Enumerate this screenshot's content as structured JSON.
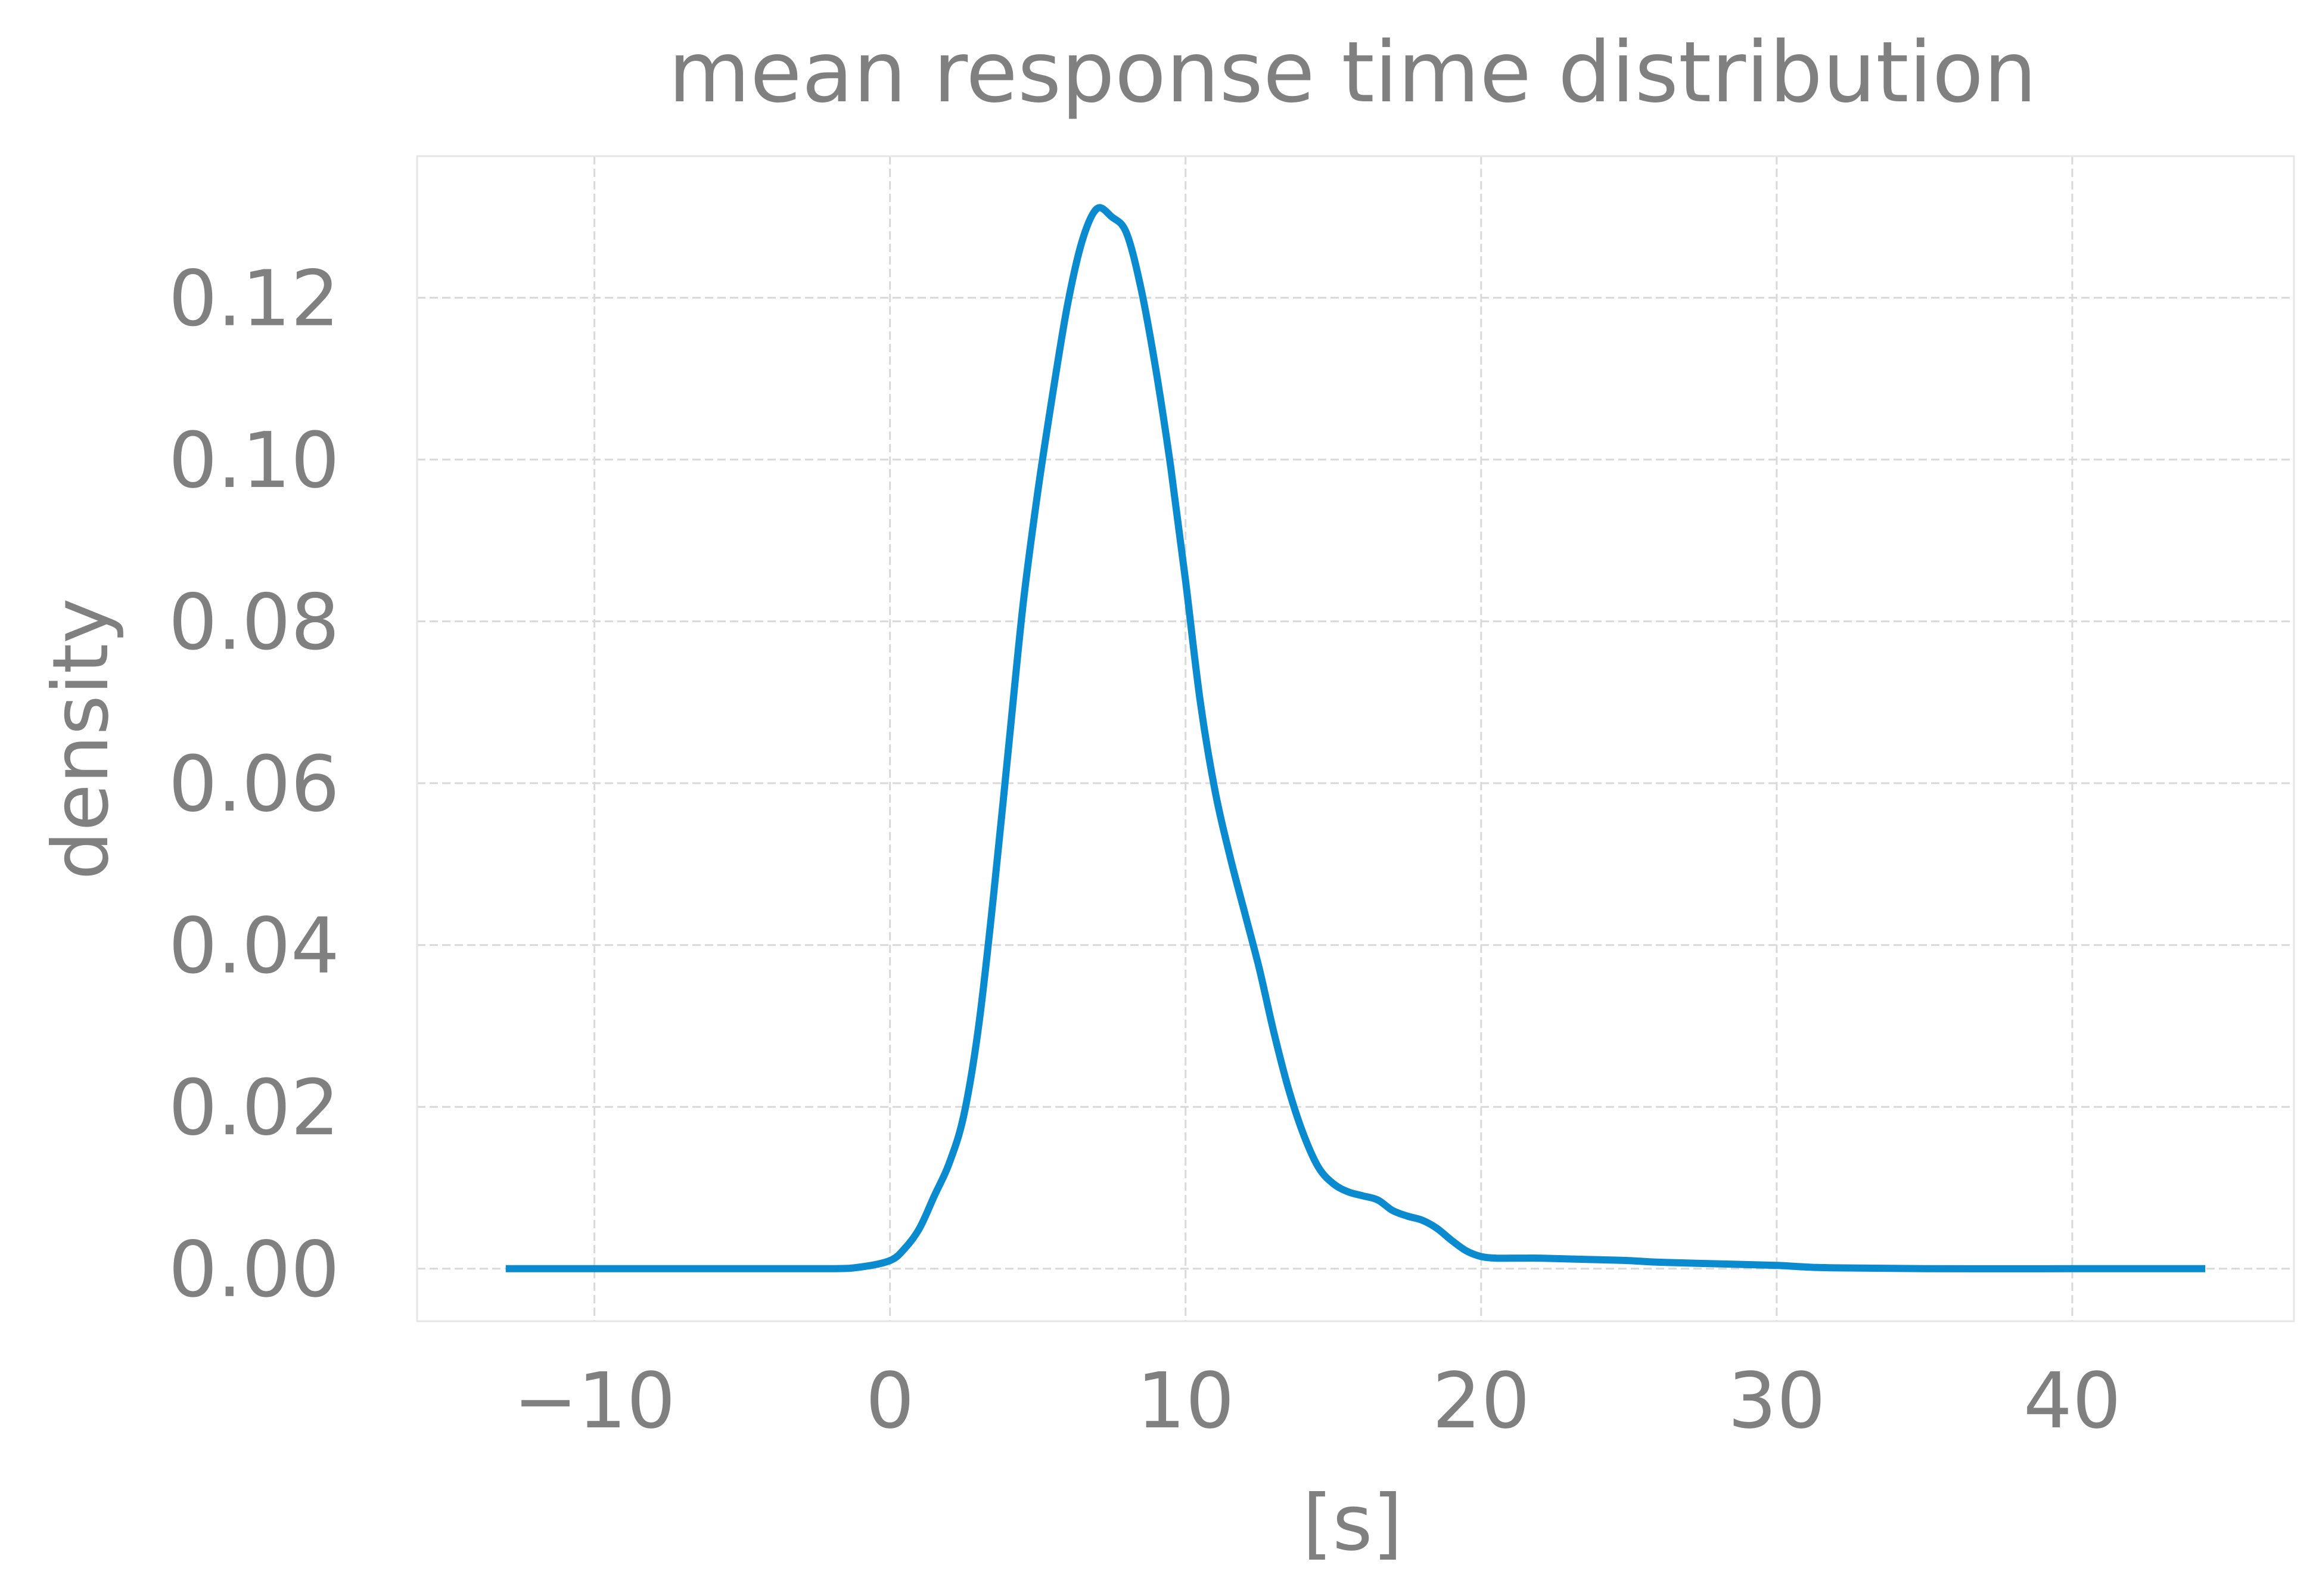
{
  "chart_data": {
    "type": "line",
    "title": "mean response time distribution",
    "xlabel": "[s]",
    "ylabel": "density",
    "xlim": [
      -16,
      47.5
    ],
    "ylim": [
      -0.0065,
      0.1375
    ],
    "grid": true,
    "x_ticks": [
      -10,
      0,
      10,
      20,
      30,
      40
    ],
    "x_tick_labels": [
      "−10",
      "0",
      "10",
      "20",
      "30",
      "40"
    ],
    "y_ticks": [
      0.0,
      0.02,
      0.04,
      0.06,
      0.08,
      0.1,
      0.12
    ],
    "y_tick_labels": [
      "0.00",
      "0.02",
      "0.04",
      "0.06",
      "0.08",
      "0.10",
      "0.12"
    ],
    "series": [
      {
        "color": "#0a8bd0",
        "x": [
          -13,
          -10,
          -5,
          -2,
          -1,
          0,
          0.5,
          1,
          1.5,
          2,
          2.5,
          3,
          3.5,
          4,
          4.5,
          5,
          5.5,
          6,
          6.5,
          7,
          7.5,
          8,
          8.5,
          9,
          9.5,
          10,
          10.5,
          11,
          11.5,
          12,
          12.5,
          13,
          13.5,
          14,
          14.5,
          15,
          15.5,
          16,
          16.5,
          17,
          17.5,
          18,
          18.5,
          19,
          19.5,
          20,
          20.5,
          21,
          21.5,
          22,
          23,
          24,
          25,
          26,
          28,
          30,
          31,
          32,
          35,
          40,
          44.5
        ],
        "y": [
          0,
          0,
          0,
          0,
          0.0002,
          0.001,
          0.0025,
          0.005,
          0.009,
          0.013,
          0.019,
          0.03,
          0.046,
          0.064,
          0.082,
          0.096,
          0.108,
          0.119,
          0.127,
          0.131,
          0.13,
          0.128,
          0.121,
          0.111,
          0.099,
          0.085,
          0.07,
          0.059,
          0.051,
          0.044,
          0.037,
          0.029,
          0.022,
          0.0165,
          0.0125,
          0.0105,
          0.0095,
          0.009,
          0.0085,
          0.0072,
          0.0065,
          0.006,
          0.005,
          0.0035,
          0.0022,
          0.0015,
          0.0013,
          0.0013,
          0.0013,
          0.0013,
          0.0012,
          0.0011,
          0.001,
          0.0008,
          0.0006,
          0.0004,
          0.0002,
          0.0001,
          0,
          0,
          0
        ]
      }
    ]
  }
}
